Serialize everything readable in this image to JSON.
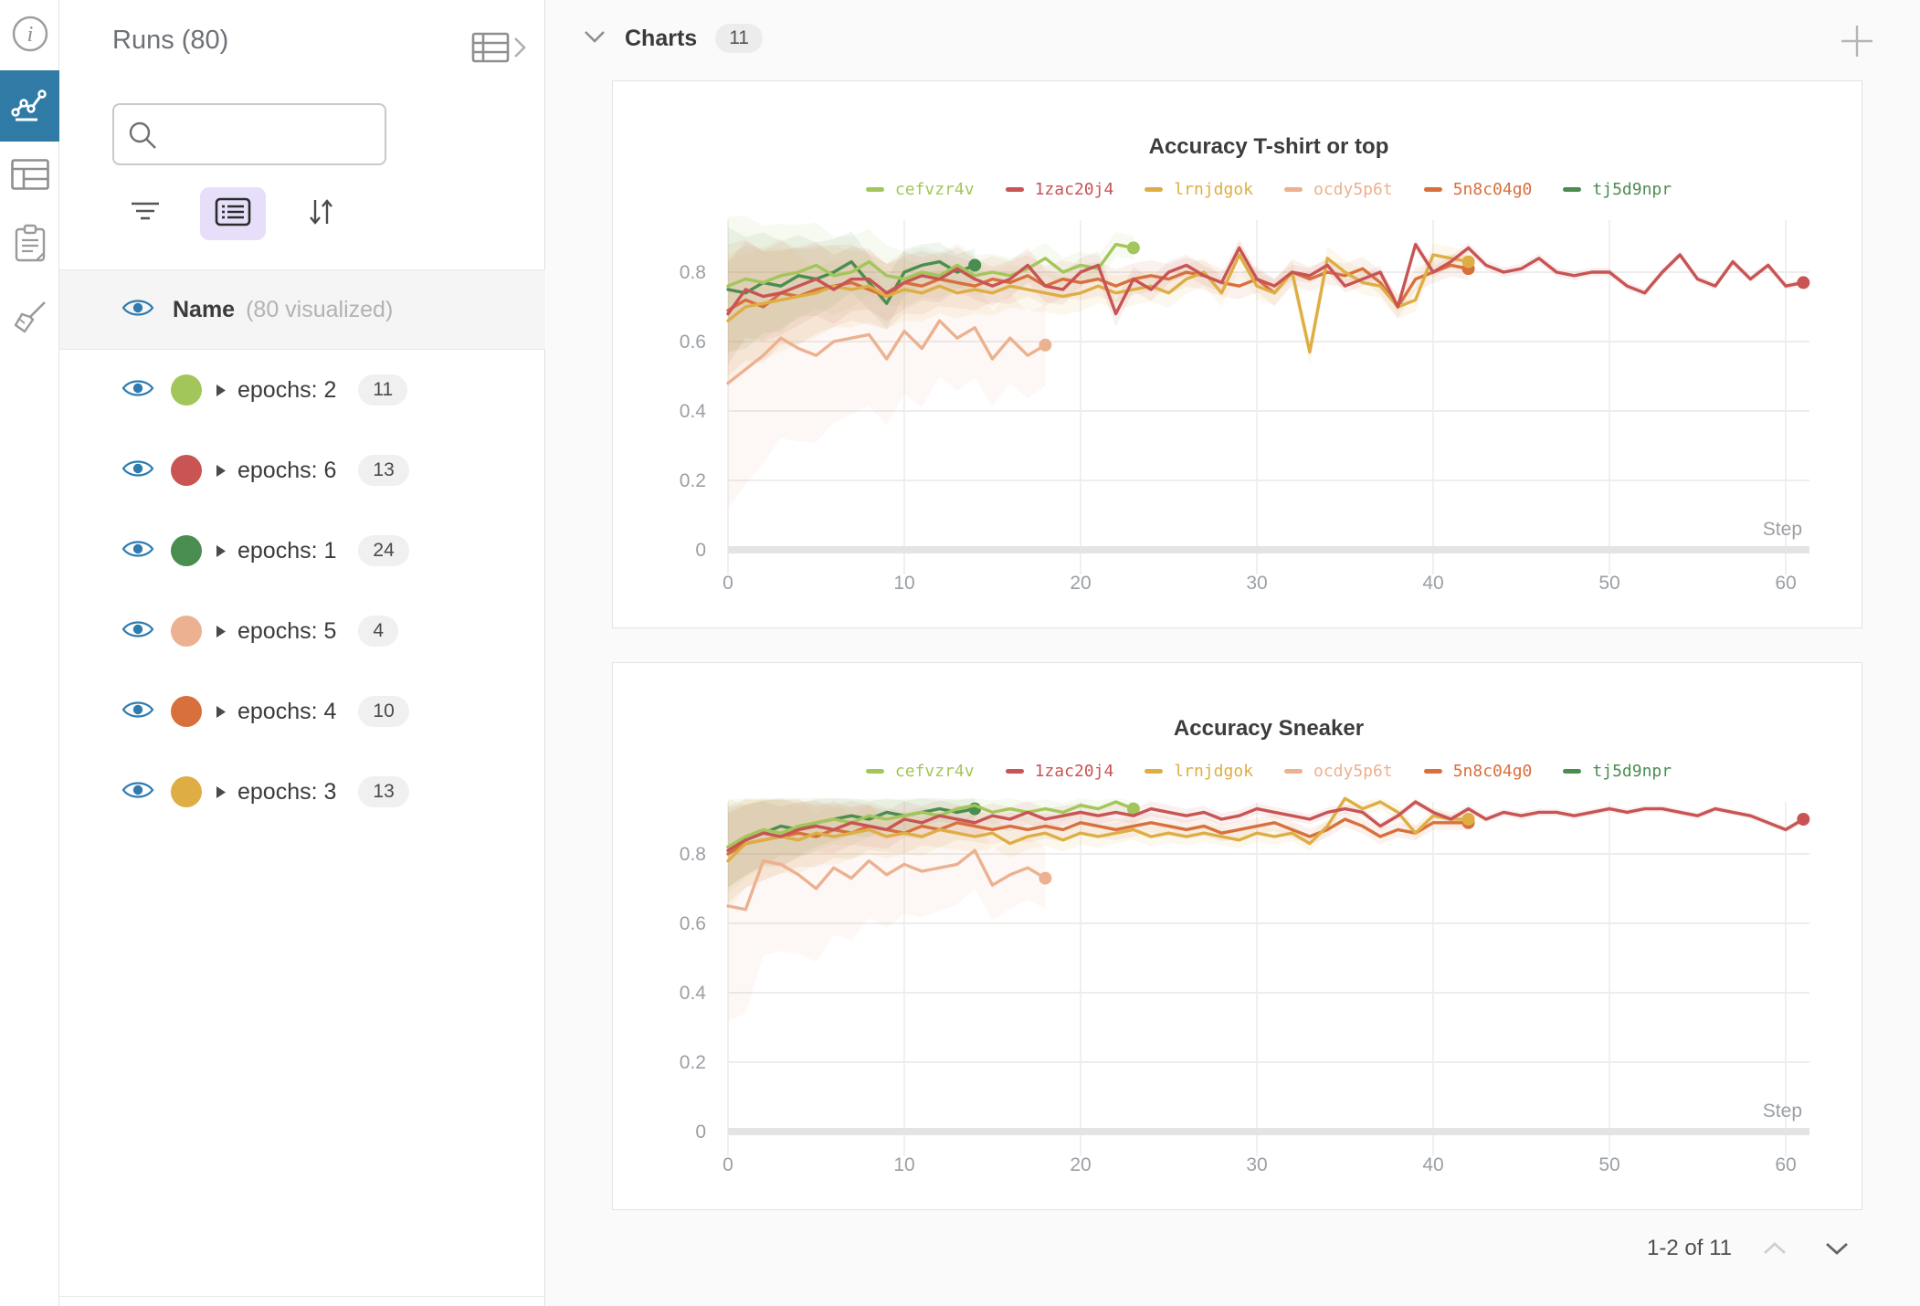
{
  "icon_rail": {
    "selected_color": "#2f7ba6",
    "items": [
      {
        "name": "info",
        "selected": false
      },
      {
        "name": "charts",
        "selected": true
      },
      {
        "name": "table",
        "selected": false
      },
      {
        "name": "notes",
        "selected": false
      },
      {
        "name": "cleanup",
        "selected": false
      }
    ]
  },
  "runs_panel": {
    "title": "Runs (80)",
    "search": {
      "placeholder": ""
    },
    "visibility_header": {
      "label": "Name",
      "sublabel": "(80 visualized)"
    },
    "rows": [
      {
        "label": "epochs: 2",
        "count": "11",
        "color": "#a3c65a"
      },
      {
        "label": "epochs: 6",
        "count": "13",
        "color": "#c85454"
      },
      {
        "label": "epochs: 1",
        "count": "24",
        "color": "#4a8d50"
      },
      {
        "label": "epochs: 5",
        "count": "4",
        "color": "#ecb190"
      },
      {
        "label": "epochs: 4",
        "count": "10",
        "color": "#d8703d"
      },
      {
        "label": "epochs: 3",
        "count": "13",
        "color": "#deae44"
      }
    ]
  },
  "charts_section": {
    "title": "Charts",
    "badge": "11",
    "pagination": "1-2 of 11"
  },
  "chart_data": [
    {
      "type": "line",
      "title": "Accuracy T-shirt or top",
      "xlabel": "Step",
      "ylabel": "",
      "xticks": [
        0,
        10,
        20,
        30,
        40,
        50,
        60
      ],
      "yticks": [
        0,
        0.2,
        0.4,
        0.6,
        0.8
      ],
      "xlim": [
        0,
        62
      ],
      "ylim": [
        0,
        0.97
      ],
      "grid": true,
      "legend_position": "top",
      "draw_order": [
        3,
        5,
        4,
        2,
        0,
        1
      ],
      "series": [
        {
          "name": "cefvzr4v",
          "color": "#a3c65a",
          "x_start": 0,
          "x_step": 1,
          "end_dot": true,
          "band": {
            "base": 0.18,
            "tau": 9,
            "min": 0.02
          },
          "values": [
            0.76,
            0.78,
            0.77,
            0.79,
            0.8,
            0.82,
            0.79,
            0.8,
            0.83,
            0.79,
            0.78,
            0.8,
            0.79,
            0.82,
            0.79,
            0.8,
            0.79,
            0.81,
            0.84,
            0.8,
            0.82,
            0.81,
            0.88,
            0.87
          ]
        },
        {
          "name": "1zac20j4",
          "color": "#c85454",
          "x_start": 0,
          "x_step": 1,
          "end_dot": true,
          "band": {
            "base": 0.14,
            "tau": 14,
            "min": 0.008
          },
          "values": [
            0.68,
            0.75,
            0.73,
            0.74,
            0.76,
            0.78,
            0.75,
            0.78,
            0.78,
            0.74,
            0.77,
            0.79,
            0.78,
            0.81,
            0.78,
            0.76,
            0.78,
            0.82,
            0.76,
            0.75,
            0.8,
            0.82,
            0.68,
            0.78,
            0.75,
            0.8,
            0.82,
            0.79,
            0.77,
            0.87,
            0.78,
            0.76,
            0.8,
            0.79,
            0.82,
            0.76,
            0.78,
            0.8,
            0.7,
            0.88,
            0.8,
            0.83,
            0.87,
            0.82,
            0.8,
            0.81,
            0.84,
            0.8,
            0.79,
            0.8,
            0.8,
            0.76,
            0.74,
            0.8,
            0.85,
            0.78,
            0.76,
            0.83,
            0.78,
            0.82,
            0.76,
            0.77
          ]
        },
        {
          "name": "lrnjdgok",
          "color": "#deae44",
          "x_start": 0,
          "x_step": 1,
          "end_dot": true,
          "band": {
            "base": 0.16,
            "tau": 10,
            "min": 0.03
          },
          "values": [
            0.66,
            0.7,
            0.71,
            0.72,
            0.73,
            0.74,
            0.76,
            0.75,
            0.76,
            0.73,
            0.75,
            0.74,
            0.76,
            0.74,
            0.75,
            0.74,
            0.76,
            0.75,
            0.74,
            0.73,
            0.74,
            0.76,
            0.74,
            0.75,
            0.76,
            0.74,
            0.78,
            0.8,
            0.74,
            0.85,
            0.76,
            0.74,
            0.8,
            0.57,
            0.84,
            0.8,
            0.77,
            0.76,
            0.7,
            0.72,
            0.85,
            0.84,
            0.83
          ]
        },
        {
          "name": "ocdy5p6t",
          "color": "#ecb190",
          "x_start": 0,
          "x_step": 1,
          "end_dot": true,
          "band": {
            "base": 0.3,
            "tau": 11,
            "min": 0.06
          },
          "values": [
            0.48,
            0.52,
            0.56,
            0.61,
            0.58,
            0.56,
            0.6,
            0.61,
            0.62,
            0.55,
            0.63,
            0.58,
            0.66,
            0.61,
            0.64,
            0.55,
            0.61,
            0.56,
            0.59
          ]
        },
        {
          "name": "5n8c04g0",
          "color": "#d8703d",
          "x_start": 0,
          "x_step": 1,
          "end_dot": true,
          "band": {
            "base": 0.16,
            "tau": 10,
            "min": 0.03
          },
          "values": [
            0.69,
            0.72,
            0.7,
            0.74,
            0.73,
            0.75,
            0.76,
            0.77,
            0.75,
            0.73,
            0.77,
            0.76,
            0.78,
            0.77,
            0.76,
            0.78,
            0.77,
            0.79,
            0.76,
            0.78,
            0.77,
            0.78,
            0.76,
            0.78,
            0.79,
            0.78,
            0.8,
            0.79,
            0.77,
            0.76,
            0.78,
            0.74,
            0.8,
            0.78,
            0.8,
            0.79,
            0.81,
            0.77,
            0.7,
            0.78,
            0.8,
            0.82,
            0.81
          ]
        },
        {
          "name": "tj5d9npr",
          "color": "#4a8d50",
          "x_start": 0,
          "x_step": 1,
          "end_dot": true,
          "band": {
            "base": 0.16,
            "tau": 8,
            "min": 0.02
          },
          "values": [
            0.75,
            0.74,
            0.77,
            0.76,
            0.79,
            0.78,
            0.8,
            0.83,
            0.77,
            0.71,
            0.8,
            0.82,
            0.83,
            0.8,
            0.82
          ]
        }
      ]
    },
    {
      "type": "line",
      "title": "Accuracy Sneaker",
      "xlabel": "Step",
      "ylabel": "",
      "xticks": [
        0,
        10,
        20,
        30,
        40,
        50,
        60
      ],
      "yticks": [
        0,
        0.2,
        0.4,
        0.6,
        0.8
      ],
      "xlim": [
        0,
        62
      ],
      "ylim": [
        0,
        0.97
      ],
      "grid": true,
      "legend_position": "top",
      "draw_order": [
        3,
        5,
        4,
        2,
        0,
        1
      ],
      "series": [
        {
          "name": "cefvzr4v",
          "color": "#a3c65a",
          "x_start": 0,
          "x_step": 1,
          "end_dot": true,
          "band": {
            "base": 0.12,
            "tau": 8,
            "min": 0.015
          },
          "values": [
            0.82,
            0.85,
            0.87,
            0.86,
            0.88,
            0.89,
            0.9,
            0.89,
            0.91,
            0.9,
            0.91,
            0.92,
            0.91,
            0.93,
            0.94,
            0.92,
            0.93,
            0.92,
            0.93,
            0.92,
            0.94,
            0.93,
            0.95,
            0.93
          ]
        },
        {
          "name": "1zac20j4",
          "color": "#c85454",
          "x_start": 0,
          "x_step": 1,
          "end_dot": true,
          "band": {
            "base": 0.1,
            "tau": 12,
            "min": 0.008
          },
          "values": [
            0.81,
            0.84,
            0.86,
            0.85,
            0.87,
            0.88,
            0.87,
            0.89,
            0.88,
            0.87,
            0.9,
            0.89,
            0.91,
            0.9,
            0.89,
            0.91,
            0.9,
            0.92,
            0.9,
            0.91,
            0.92,
            0.91,
            0.92,
            0.91,
            0.93,
            0.92,
            0.91,
            0.92,
            0.9,
            0.91,
            0.93,
            0.92,
            0.91,
            0.9,
            0.92,
            0.93,
            0.92,
            0.88,
            0.91,
            0.95,
            0.92,
            0.9,
            0.93,
            0.9,
            0.92,
            0.91,
            0.92,
            0.92,
            0.91,
            0.92,
            0.93,
            0.92,
            0.93,
            0.93,
            0.92,
            0.91,
            0.93,
            0.92,
            0.91,
            0.89,
            0.87,
            0.9
          ]
        },
        {
          "name": "lrnjdgok",
          "color": "#deae44",
          "x_start": 0,
          "x_step": 1,
          "end_dot": true,
          "band": {
            "base": 0.12,
            "tau": 9,
            "min": 0.02
          },
          "values": [
            0.78,
            0.83,
            0.84,
            0.85,
            0.84,
            0.86,
            0.85,
            0.86,
            0.87,
            0.85,
            0.86,
            0.85,
            0.87,
            0.86,
            0.85,
            0.86,
            0.83,
            0.85,
            0.86,
            0.84,
            0.86,
            0.85,
            0.86,
            0.87,
            0.85,
            0.86,
            0.85,
            0.86,
            0.85,
            0.84,
            0.86,
            0.85,
            0.86,
            0.83,
            0.88,
            0.96,
            0.93,
            0.95,
            0.92,
            0.86,
            0.91,
            0.9,
            0.9
          ]
        },
        {
          "name": "ocdy5p6t",
          "color": "#ecb190",
          "x_start": 0,
          "x_step": 1,
          "end_dot": true,
          "band": {
            "base": 0.28,
            "tau": 9,
            "min": 0.05
          },
          "values": [
            0.65,
            0.64,
            0.78,
            0.77,
            0.74,
            0.7,
            0.76,
            0.73,
            0.78,
            0.74,
            0.77,
            0.75,
            0.76,
            0.77,
            0.81,
            0.71,
            0.74,
            0.76,
            0.73
          ]
        },
        {
          "name": "5n8c04g0",
          "color": "#d8703d",
          "x_start": 0,
          "x_step": 1,
          "end_dot": true,
          "band": {
            "base": 0.12,
            "tau": 9,
            "min": 0.02
          },
          "values": [
            0.8,
            0.83,
            0.84,
            0.85,
            0.86,
            0.85,
            0.87,
            0.86,
            0.88,
            0.87,
            0.86,
            0.88,
            0.87,
            0.89,
            0.88,
            0.87,
            0.88,
            0.87,
            0.88,
            0.87,
            0.89,
            0.88,
            0.87,
            0.88,
            0.89,
            0.88,
            0.87,
            0.88,
            0.86,
            0.87,
            0.88,
            0.89,
            0.87,
            0.85,
            0.87,
            0.9,
            0.88,
            0.85,
            0.87,
            0.86,
            0.89,
            0.89,
            0.89
          ]
        },
        {
          "name": "tj5d9npr",
          "color": "#4a8d50",
          "x_start": 0,
          "x_step": 1,
          "end_dot": true,
          "band": {
            "base": 0.1,
            "tau": 8,
            "min": 0.015
          },
          "values": [
            0.82,
            0.84,
            0.86,
            0.88,
            0.87,
            0.89,
            0.9,
            0.91,
            0.9,
            0.92,
            0.91,
            0.92,
            0.93,
            0.92,
            0.93
          ]
        }
      ]
    }
  ]
}
